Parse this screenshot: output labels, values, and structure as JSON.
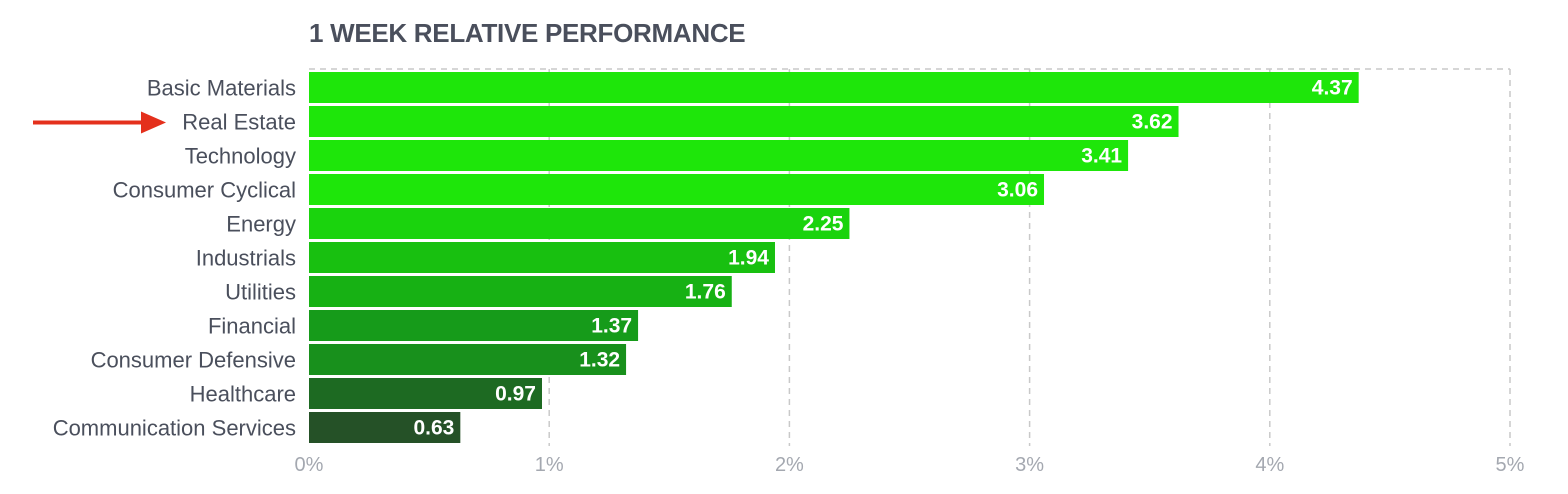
{
  "chart_data": {
    "type": "bar",
    "orientation": "horizontal",
    "title": "1 WEEK RELATIVE PERFORMANCE",
    "categories": [
      "Basic Materials",
      "Real Estate",
      "Technology",
      "Consumer Cyclical",
      "Energy",
      "Industrials",
      "Utilities",
      "Financial",
      "Consumer Defensive",
      "Healthcare",
      "Communication Services"
    ],
    "values": [
      4.37,
      3.62,
      3.41,
      3.06,
      2.25,
      1.94,
      1.76,
      1.37,
      1.32,
      0.97,
      0.63
    ],
    "value_labels": [
      "4.37",
      "3.62",
      "3.41",
      "3.06",
      "2.25",
      "1.94",
      "1.76",
      "1.37",
      "1.32",
      "0.97",
      "0.63"
    ],
    "xlim": [
      0,
      5
    ],
    "x_ticks": [
      0,
      1,
      2,
      3,
      4,
      5
    ],
    "x_tick_labels": [
      "0%",
      "1%",
      "2%",
      "3%",
      "4%",
      "5%"
    ],
    "xlabel": "",
    "ylabel": "",
    "grid": true,
    "legend": "none",
    "bar_colors": [
      "#1ee60a",
      "#1ee60a",
      "#1ee60a",
      "#1ee60a",
      "#1ad30d",
      "#18c010",
      "#17b114",
      "#169b1a",
      "#18901c",
      "#1d6a22",
      "#255127"
    ],
    "annotations": [
      {
        "type": "arrow",
        "target": "Real Estate",
        "color": "#e4301c"
      }
    ]
  }
}
